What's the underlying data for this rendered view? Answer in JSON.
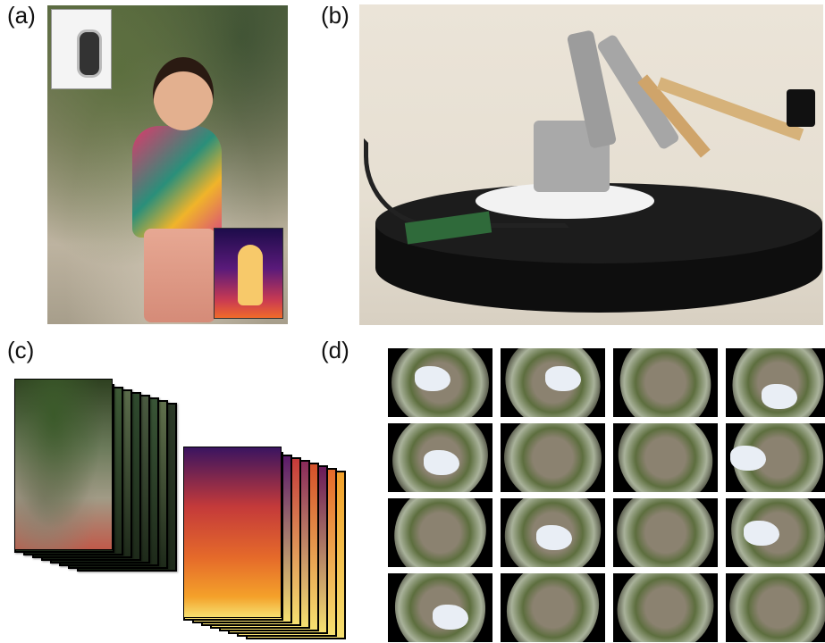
{
  "labels": {
    "a": "(a)",
    "b": "(b)",
    "c": "(c)",
    "d": "(d)"
  },
  "panel_a": {
    "icons": [
      "phone-camera-icon",
      "depth-map-thumbnail"
    ]
  },
  "panel_b": {
    "icons": [
      "robot-arm",
      "turntable",
      "camera"
    ]
  },
  "panel_c": {
    "rgb_stack_layers": 8,
    "depth_stack_layers": 8
  },
  "panel_d": {
    "rows": 4,
    "cols": 4,
    "colors": {
      "tile_bg": "#000000",
      "sky": "#e9eef5"
    }
  }
}
